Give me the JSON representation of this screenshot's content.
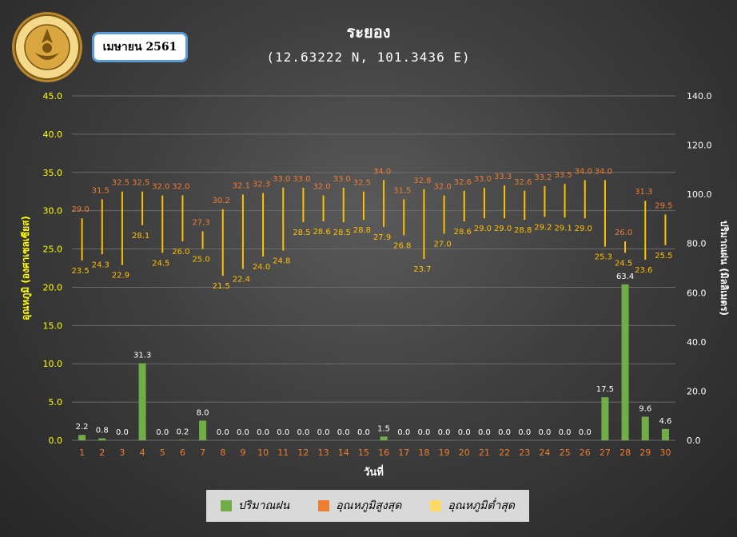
{
  "header": {
    "month_badge": "เมษายน 2561",
    "title": "ระยอง",
    "subtitle": "(12.63222 N, 101.3436 E)"
  },
  "colors": {
    "rain": "#70ad47",
    "tmax": "#ed7d31",
    "tmin": "#ffc000",
    "left_axis_text": "#ffff00",
    "x_tick_text": "#ed7d31",
    "right_axis_text": "#ffffff"
  },
  "legend": {
    "rain": "ปริมาณฝน",
    "tmax": "อุณหภูมิสูงสุด",
    "tmin": "อุณหภูมิต่ำสุด"
  },
  "chart_data": {
    "type": "bar",
    "xlabel": "วันที่",
    "ylabel_left": "อุณหภูมิ (องศาเซลเซียส)",
    "ylabel_right": "ปริมาณฝน (มิลลิเมตร)",
    "ylim_left": [
      0,
      45
    ],
    "ylim_right": [
      0,
      140
    ],
    "yticks_left": [
      "0.0",
      "5.0",
      "10.0",
      "15.0",
      "20.0",
      "25.0",
      "30.0",
      "35.0",
      "40.0",
      "45.0"
    ],
    "yticks_right": [
      "0.0",
      "20.0",
      "40.0",
      "60.0",
      "80.0",
      "100.0",
      "120.0",
      "140.0"
    ],
    "grid": true,
    "legend_position": "bottom",
    "categories": [
      "1",
      "2",
      "3",
      "4",
      "5",
      "6",
      "7",
      "8",
      "9",
      "10",
      "11",
      "12",
      "13",
      "14",
      "15",
      "16",
      "17",
      "18",
      "19",
      "20",
      "21",
      "22",
      "23",
      "24",
      "25",
      "26",
      "27",
      "28",
      "29",
      "30"
    ],
    "series": [
      {
        "name": "ปริมาณฝน",
        "axis": "right",
        "values": [
          2.2,
          0.8,
          0.0,
          31.3,
          0.0,
          0.2,
          8.0,
          0.0,
          0.0,
          0.0,
          0.0,
          0.0,
          0.0,
          0.0,
          0.0,
          1.5,
          0.0,
          0.0,
          0.0,
          0.0,
          0.0,
          0.0,
          0.0,
          0.0,
          0.0,
          0.0,
          17.5,
          63.4,
          9.6,
          4.6
        ]
      },
      {
        "name": "อุณหภูมิสูงสุด",
        "axis": "left",
        "values": [
          29.0,
          31.5,
          32.5,
          32.5,
          32.0,
          32.0,
          27.3,
          30.2,
          32.1,
          32.3,
          33.0,
          33.0,
          32.0,
          33.0,
          32.5,
          34.0,
          31.5,
          32.8,
          32.0,
          32.6,
          33.0,
          33.3,
          32.6,
          33.2,
          33.5,
          34.0,
          34.0,
          26.0,
          31.3,
          29.5
        ]
      },
      {
        "name": "อุณหภูมิต่ำสุด",
        "axis": "left",
        "values": [
          23.5,
          24.3,
          22.9,
          28.1,
          24.5,
          26.0,
          25.0,
          21.5,
          22.4,
          24.0,
          24.8,
          28.5,
          28.6,
          28.5,
          28.8,
          27.9,
          26.8,
          23.7,
          27.0,
          28.6,
          29.0,
          29.0,
          28.8,
          29.2,
          29.1,
          29.0,
          25.3,
          24.5,
          23.6,
          25.5
        ]
      }
    ]
  }
}
